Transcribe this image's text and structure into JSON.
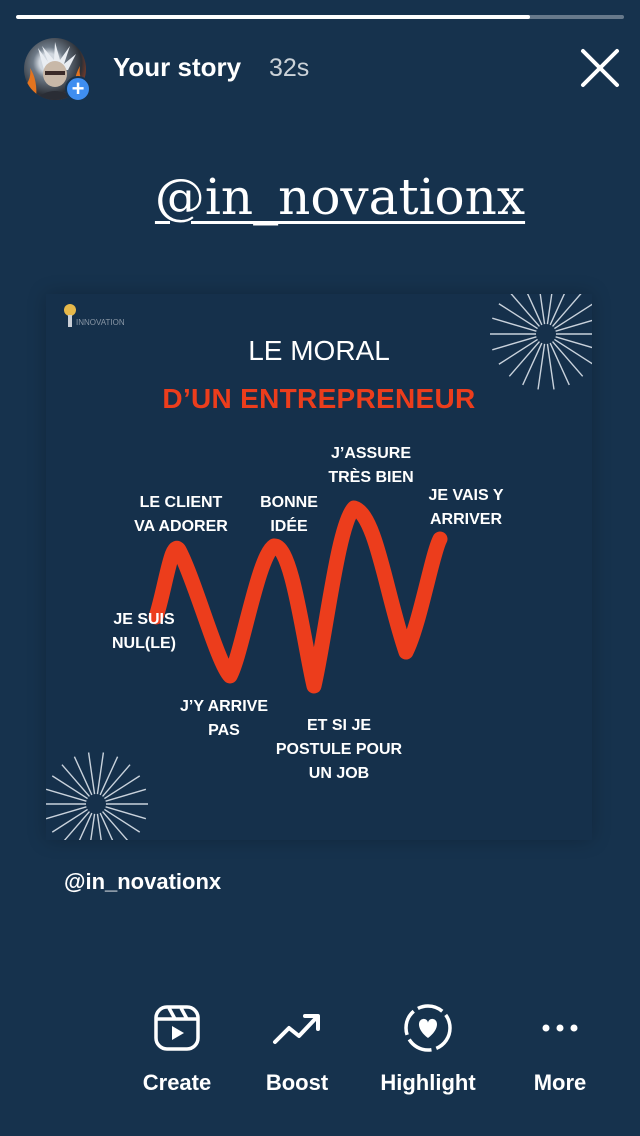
{
  "progress": {
    "fraction": 0.846
  },
  "header": {
    "title": "Your story",
    "time": "32s",
    "avatar_badge": "+",
    "close_icon": "close-icon"
  },
  "mention_title": "@in_novationx",
  "post": {
    "heading": "LE MORAL",
    "subheading": "D’UN ENTREPRENEUR",
    "labels": {
      "je_suis_nul": [
        "JE SUIS",
        "NUL(LE)"
      ],
      "le_client": [
        "LE CLIENT",
        "VA ADORER"
      ],
      "jy_arrive_pas": [
        "J’Y ARRIVE",
        "PAS"
      ],
      "bonne_idee": [
        "BONNE",
        "IDÉE"
      ],
      "et_si_je": [
        "ET SI JE",
        "POSTULE POUR",
        "UN JOB"
      ],
      "jassure": [
        "J’ASSURE",
        "TRÈS BIEN"
      ],
      "je_vais": [
        "JE VAIS Y",
        "ARRIVER"
      ]
    },
    "colors": {
      "accent": "#ec3d1c",
      "background": "#15304b"
    }
  },
  "mention_sticker": "@in_novationx",
  "actions": [
    {
      "label": "Create",
      "icon": "reels-icon"
    },
    {
      "label": "Boost",
      "icon": "trending-up-icon"
    },
    {
      "label": "Highlight",
      "icon": "highlight-heart-icon"
    },
    {
      "label": "More",
      "icon": "more-dots-icon"
    }
  ]
}
